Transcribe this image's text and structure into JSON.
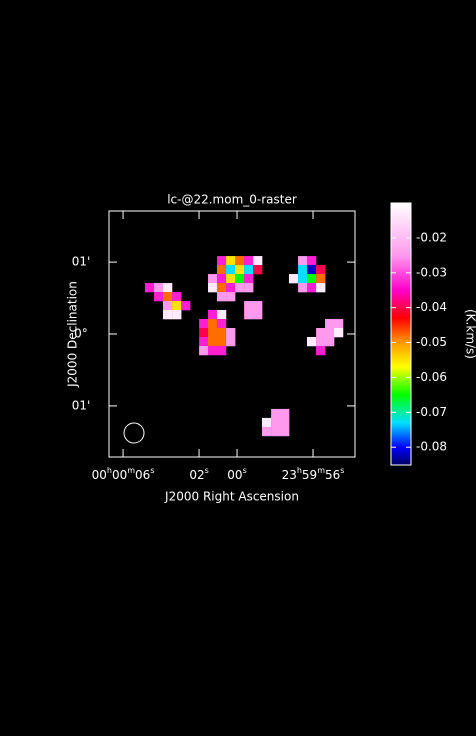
{
  "chart_data": {
    "type": "raster",
    "title": "lc-@22.mom_0-raster",
    "x_label": "J2000 Right Ascension",
    "y_label": "J2000 Declination",
    "colorbar_label": "(K.km/s)",
    "xlim": [
      6.74,
      -6.21
    ],
    "ylim": [
      -1.71,
      1.71
    ],
    "xticks": [
      {
        "value": 6,
        "label": "00h00m06s"
      },
      {
        "value": 2,
        "label": "02s"
      },
      {
        "value": 0,
        "label": "00s"
      },
      {
        "value": -4,
        "label": "23h59m56s"
      }
    ],
    "yticks": [
      {
        "value": 1,
        "label": "01'"
      },
      {
        "value": 0,
        "label": "0°"
      },
      {
        "value": -1,
        "label": "01'"
      }
    ],
    "clim": [
      -0.0851,
      -0.01
    ],
    "colorbar_ticks": [
      -0.02,
      -0.03,
      -0.04,
      -0.05,
      -0.06,
      -0.07,
      -0.08
    ],
    "colorscale": [
      {
        "value": -0.0851,
        "color": "#000066"
      },
      {
        "value": -0.08,
        "color": "#0000ff"
      },
      {
        "value": -0.073,
        "color": "#00e0ff"
      },
      {
        "value": -0.065,
        "color": "#00ff00"
      },
      {
        "value": -0.057,
        "color": "#ffff00"
      },
      {
        "value": -0.05,
        "color": "#ff9900"
      },
      {
        "value": -0.043,
        "color": "#ff0000"
      },
      {
        "value": -0.035,
        "color": "#ff00cc"
      },
      {
        "value": -0.025,
        "color": "#ff99ee"
      },
      {
        "value": -0.01,
        "color": "#ffffff"
      }
    ],
    "pixel_size": [
      0.4737,
      0.125
    ],
    "cells": {
      "x": [
        0.82,
        0.34,
        -0.13,
        -0.61,
        -1.08,
        0.82,
        0.34,
        -0.13,
        -0.61,
        -1.08,
        1.29,
        0.82,
        0.34,
        -0.13,
        -0.61,
        1.29,
        0.82,
        0.34,
        -0.13,
        -0.61,
        0.82,
        0.34,
        4.61,
        4.13,
        3.66,
        4.13,
        3.66,
        3.18,
        3.66,
        3.18,
        2.71,
        3.66,
        3.18,
        1.29,
        0.82,
        1.76,
        1.29,
        0.82,
        1.76,
        1.29,
        0.82,
        0.34,
        1.76,
        1.29,
        0.82,
        0.34,
        1.76,
        1.29,
        0.82,
        -0.61,
        -1.08,
        -0.61,
        -1.08,
        -3.45,
        -3.92,
        -3.45,
        -3.92,
        -4.4,
        -2.97,
        -3.45,
        -3.92,
        -4.4,
        -3.45,
        -3.92,
        -4.4,
        -4.87,
        -5.34,
        -4.4,
        -4.87,
        -5.34,
        -3.92,
        -4.4,
        -4.87,
        -4.4,
        -2.03,
        -2.5,
        -1.55,
        -2.03,
        -2.5,
        -1.55,
        -2.03,
        -2.5
      ],
      "y": [
        1.021,
        1.021,
        1.021,
        1.021,
        1.021,
        0.896,
        0.896,
        0.896,
        0.896,
        0.896,
        0.771,
        0.771,
        0.771,
        0.771,
        0.771,
        0.646,
        0.646,
        0.646,
        0.646,
        0.646,
        0.521,
        0.521,
        0.646,
        0.646,
        0.646,
        0.521,
        0.521,
        0.521,
        0.396,
        0.396,
        0.396,
        0.271,
        0.271,
        0.271,
        0.271,
        0.146,
        0.146,
        0.146,
        0.021,
        0.021,
        0.021,
        0.021,
        -0.104,
        -0.104,
        -0.104,
        -0.104,
        -0.229,
        -0.229,
        -0.229,
        0.396,
        0.396,
        0.271,
        0.271,
        1.021,
        1.021,
        0.896,
        0.896,
        0.896,
        0.771,
        0.771,
        0.771,
        0.771,
        0.646,
        0.646,
        0.646,
        0.146,
        0.146,
        0.021,
        0.021,
        0.021,
        -0.104,
        -0.104,
        -0.104,
        -0.229,
        -1.104,
        -1.104,
        -1.229,
        -1.229,
        -1.229,
        -1.354,
        -1.354,
        -1.354
      ],
      "values": [
        -0.033,
        -0.055,
        -0.048,
        -0.033,
        -0.013,
        -0.048,
        -0.073,
        -0.055,
        -0.073,
        -0.04,
        -0.025,
        -0.033,
        -0.055,
        -0.065,
        -0.033,
        -0.013,
        -0.048,
        -0.033,
        -0.025,
        -0.025,
        -0.025,
        -0.025,
        -0.033,
        -0.025,
        -0.013,
        -0.033,
        -0.048,
        -0.033,
        -0.025,
        -0.055,
        -0.033,
        -0.013,
        -0.013,
        -0.033,
        -0.013,
        -0.033,
        -0.048,
        -0.033,
        -0.04,
        -0.048,
        -0.048,
        -0.025,
        -0.033,
        -0.048,
        -0.048,
        -0.025,
        -0.025,
        -0.033,
        -0.033,
        -0.025,
        -0.025,
        -0.025,
        -0.025,
        -0.025,
        -0.033,
        -0.073,
        -0.082,
        -0.04,
        -0.013,
        -0.073,
        -0.065,
        -0.048,
        -0.025,
        -0.033,
        -0.013,
        -0.025,
        -0.025,
        -0.025,
        -0.025,
        -0.013,
        -0.013,
        -0.025,
        -0.025,
        -0.033,
        -0.025,
        -0.025,
        -0.013,
        -0.025,
        -0.025,
        -0.025,
        -0.025,
        -0.025
      ]
    }
  }
}
